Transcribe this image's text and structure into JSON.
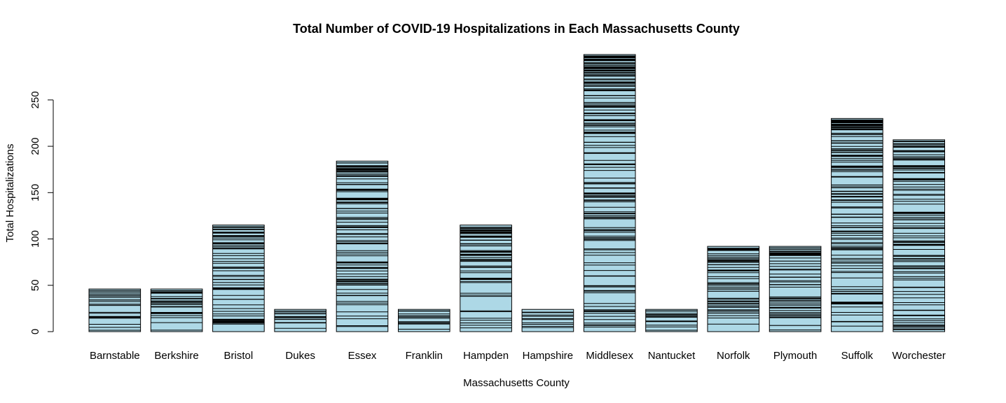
{
  "chart_data": {
    "type": "bar",
    "title": "Total Number of COVID-19 Hospitalizations in Each Massachusetts County",
    "xlabel": "Massachusetts County",
    "ylabel": "Total Hospitalizations",
    "categories": [
      "Barnstable",
      "Berkshire",
      "Bristol",
      "Dukes",
      "Essex",
      "Franklin",
      "Hampden",
      "Hampshire",
      "Middlesex",
      "Nantucket",
      "Norfolk",
      "Plymouth",
      "Suffolk",
      "Worchester"
    ],
    "values": [
      46,
      46,
      115,
      24,
      184,
      24,
      115,
      24,
      299,
      24,
      92,
      92,
      230,
      207
    ],
    "yticks": [
      0,
      50,
      100,
      150,
      200,
      250
    ],
    "ylim": [
      0,
      299
    ],
    "bar_color": "#add8e6",
    "grid": false
  }
}
